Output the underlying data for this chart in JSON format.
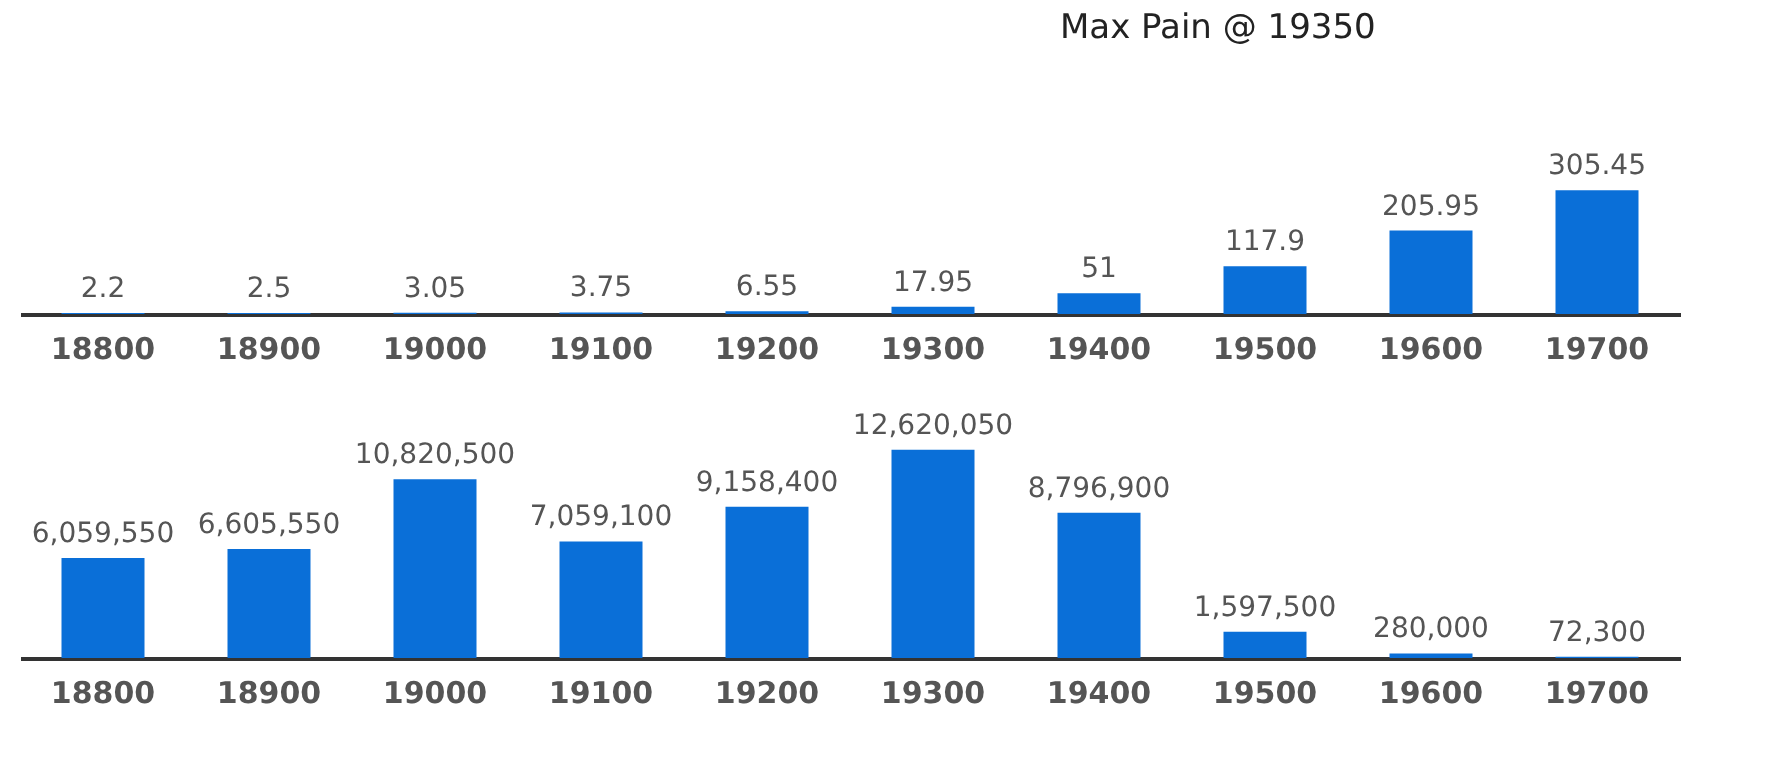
{
  "chart_data": [
    {
      "type": "bar",
      "title": "Max Pain @ 19350",
      "categories": [
        "18800",
        "18900",
        "19000",
        "19100",
        "19200",
        "19300",
        "19400",
        "19500",
        "19600",
        "19700"
      ],
      "values": [
        2.2,
        2.5,
        3.05,
        3.75,
        6.55,
        17.95,
        51,
        117.9,
        205.95,
        305.45
      ],
      "color": "#0a6fd8",
      "data_labels": true
    },
    {
      "type": "bar",
      "categories": [
        "18800",
        "18900",
        "19000",
        "19100",
        "19200",
        "19300",
        "19400",
        "19500",
        "19600",
        "19700"
      ],
      "values": [
        6059550,
        6605550,
        10820500,
        7059100,
        9158400,
        12620050,
        8796900,
        1597500,
        280000,
        72300
      ],
      "color": "#0a6fd8",
      "value_labels": [
        "6,059,550",
        "6,605,550",
        "10,820,500",
        "7,059,100",
        "9,158,400",
        "12,620,050",
        "8,796,900",
        "1,597,500",
        "280,000",
        "72,300"
      ]
    }
  ]
}
